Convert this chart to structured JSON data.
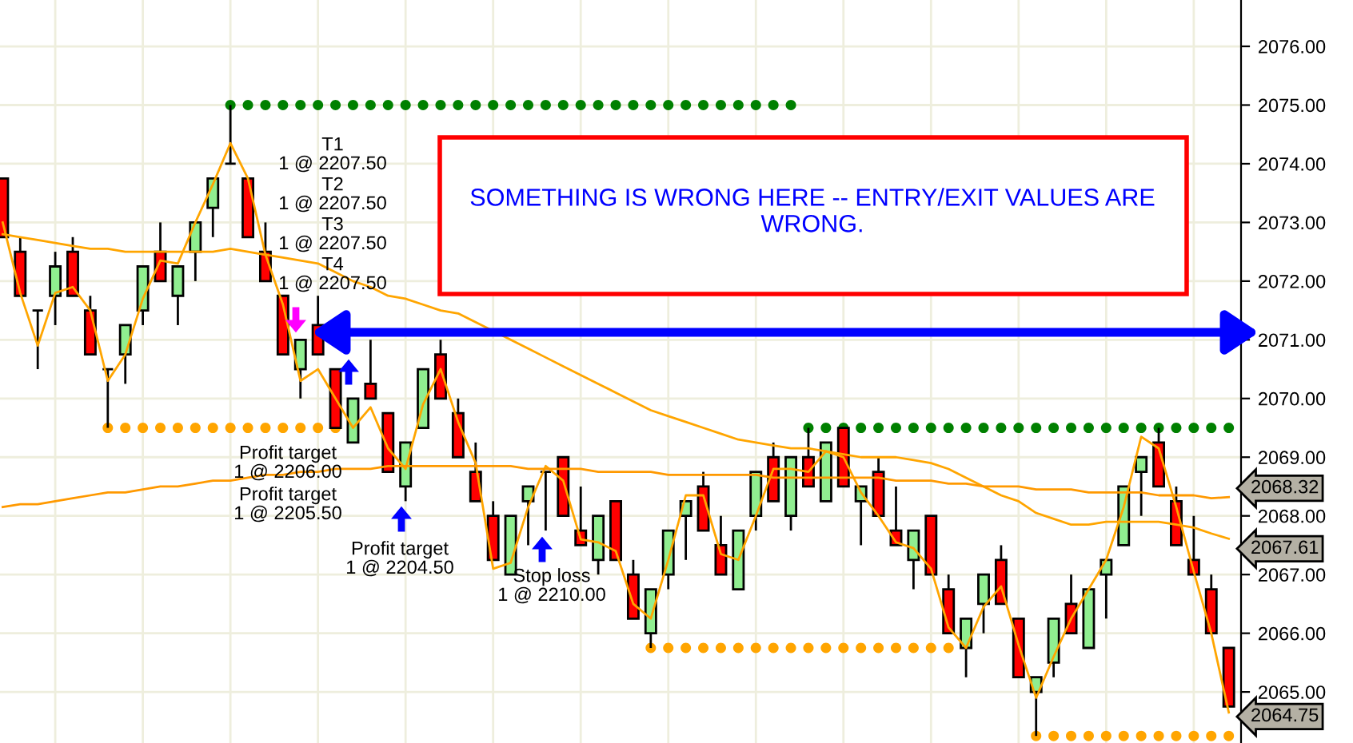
{
  "chart_data": {
    "type": "candlestick",
    "categories": [
      null,
      null,
      null,
      null,
      null,
      null,
      null,
      null,
      null,
      null,
      null,
      null,
      null,
      null,
      null,
      null,
      null,
      null,
      null,
      null,
      null,
      null,
      null,
      null,
      null,
      null,
      null,
      null,
      null,
      null,
      null,
      null,
      null,
      null,
      null,
      null,
      null,
      null,
      null,
      null,
      null,
      null,
      null,
      null,
      null,
      null,
      null,
      null,
      null,
      null,
      null,
      null,
      null,
      null,
      null,
      null,
      null,
      null,
      null,
      null,
      null,
      null,
      null,
      null,
      null,
      null,
      null,
      null,
      null,
      null,
      null
    ],
    "ohlc": [
      [
        2073.75,
        2073.75,
        2072.75,
        2072.75
      ],
      [
        2072.5,
        2072.75,
        2071.75,
        2071.75
      ],
      [
        2071.5,
        2071.5,
        2070.5,
        2071.5
      ],
      [
        2071.75,
        2072.5,
        2071.25,
        2072.25
      ],
      [
        2072.5,
        2072.75,
        2071.75,
        2071.75
      ],
      [
        2071.5,
        2071.75,
        2070.75,
        2070.75
      ],
      [
        2070.5,
        2070.5,
        2069.5,
        2070.5
      ],
      [
        2070.75,
        2071.25,
        2070.25,
        2071.25
      ],
      [
        2071.5,
        2072.25,
        2071.25,
        2072.25
      ],
      [
        2072.5,
        2073.0,
        2072.0,
        2072.0
      ],
      [
        2071.75,
        2072.25,
        2071.25,
        2072.25
      ],
      [
        2072.5,
        2073.0,
        2072.0,
        2073.0
      ],
      [
        2073.25,
        2073.75,
        2072.75,
        2073.75
      ],
      [
        2074.0,
        2075.0,
        2074.0,
        2074.0
      ],
      [
        2073.75,
        2073.75,
        2072.75,
        2072.75
      ],
      [
        2072.5,
        2073.0,
        2072.0,
        2072.0
      ],
      [
        2071.75,
        2071.75,
        2070.75,
        2070.75
      ],
      [
        2070.5,
        2071.0,
        2070.0,
        2071.0
      ],
      [
        2071.25,
        2071.75,
        2070.75,
        2070.75
      ],
      [
        2070.5,
        2070.5,
        2069.5,
        2069.5
      ],
      [
        2069.25,
        2070.0,
        2069.25,
        2070.0
      ],
      [
        2070.25,
        2071.0,
        2070.0,
        2070.0
      ],
      [
        2069.75,
        2069.75,
        2068.75,
        2068.75
      ],
      [
        2068.5,
        2069.25,
        2068.25,
        2069.25
      ],
      [
        2069.5,
        2070.5,
        2069.5,
        2070.5
      ],
      [
        2070.75,
        2071.0,
        2070.0,
        2070.0
      ],
      [
        2069.75,
        2070.0,
        2069.0,
        2069.0
      ],
      [
        2068.75,
        2069.25,
        2068.25,
        2068.25
      ],
      [
        2068.0,
        2068.25,
        2067.25,
        2067.25
      ],
      [
        2067.0,
        2068.0,
        2067.0,
        2068.0
      ],
      [
        2068.25,
        2068.5,
        2067.5,
        2068.5
      ],
      [
        2068.75,
        2068.75,
        2067.75,
        2068.75
      ],
      [
        2069.0,
        2069.0,
        2068.0,
        2068.0
      ],
      [
        2067.75,
        2068.5,
        2067.5,
        2067.5
      ],
      [
        2067.25,
        2068.0,
        2067.0,
        2068.0
      ],
      [
        2068.25,
        2068.25,
        2067.25,
        2067.25
      ],
      [
        2067.0,
        2067.25,
        2066.25,
        2066.25
      ],
      [
        2066.0,
        2066.75,
        2065.75,
        2066.75
      ],
      [
        2067.0,
        2067.75,
        2066.75,
        2067.75
      ],
      [
        2068.0,
        2068.25,
        2067.25,
        2068.25
      ],
      [
        2068.5,
        2068.75,
        2067.75,
        2067.75
      ],
      [
        2067.5,
        2068.0,
        2067.0,
        2067.0
      ],
      [
        2066.75,
        2067.75,
        2066.75,
        2067.75
      ],
      [
        2068.0,
        2068.75,
        2067.75,
        2068.75
      ],
      [
        2069.0,
        2069.25,
        2068.25,
        2068.25
      ],
      [
        2068.0,
        2069.0,
        2067.75,
        2069.0
      ],
      [
        2069.0,
        2069.5,
        2068.5,
        2068.5
      ],
      [
        2068.25,
        2069.25,
        2068.25,
        2069.25
      ],
      [
        2069.5,
        2069.5,
        2068.5,
        2068.5
      ],
      [
        2068.25,
        2068.5,
        2067.5,
        2068.5
      ],
      [
        2068.75,
        2069.0,
        2068.0,
        2068.0
      ],
      [
        2067.75,
        2068.5,
        2067.5,
        2067.5
      ],
      [
        2067.25,
        2067.75,
        2066.75,
        2067.75
      ],
      [
        2068.0,
        2068.0,
        2067.0,
        2067.0
      ],
      [
        2066.75,
        2067.0,
        2066.0,
        2066.0
      ],
      [
        2065.75,
        2066.25,
        2065.25,
        2066.25
      ],
      [
        2066.5,
        2067.0,
        2066.0,
        2067.0
      ],
      [
        2067.25,
        2067.5,
        2066.5,
        2066.5
      ],
      [
        2066.25,
        2066.25,
        2065.25,
        2065.25
      ],
      [
        2065.0,
        2065.25,
        2064.25,
        2065.25
      ],
      [
        2065.5,
        2066.25,
        2065.25,
        2066.25
      ],
      [
        2066.5,
        2067.0,
        2066.0,
        2066.0
      ],
      [
        2065.75,
        2066.75,
        2065.75,
        2066.75
      ],
      [
        2067.0,
        2067.25,
        2066.25,
        2067.25
      ],
      [
        2067.5,
        2068.5,
        2067.5,
        2068.5
      ],
      [
        2068.75,
        2069.0,
        2068.0,
        2069.0
      ],
      [
        2069.25,
        2069.5,
        2068.5,
        2068.5
      ],
      [
        2068.25,
        2068.5,
        2067.5,
        2067.5
      ],
      [
        2067.25,
        2068.0,
        2067.0,
        2067.0
      ],
      [
        2066.75,
        2067.0,
        2066.0,
        2066.0
      ],
      [
        2065.75,
        2065.75,
        2064.75,
        2064.75
      ]
    ],
    "colors": [
      "#ff0000",
      "#ff0000",
      "#000000",
      "#90ee90",
      "#ff0000",
      "#ff0000",
      "#000000",
      "#90ee90",
      "#90ee90",
      "#ff0000",
      "#90ee90",
      "#90ee90",
      "#90ee90",
      "#000000",
      "#ff0000",
      "#ff0000",
      "#ff0000",
      "#90ee90",
      "#ff0000",
      "#ff0000",
      "#90ee90",
      "#ff0000",
      "#ff0000",
      "#90ee90",
      "#90ee90",
      "#ff0000",
      "#ff0000",
      "#ff0000",
      "#ff0000",
      "#90ee90",
      "#90ee90",
      "#000000",
      "#ff0000",
      "#ff0000",
      "#90ee90",
      "#ff0000",
      "#ff0000",
      "#90ee90",
      "#90ee90",
      "#90ee90",
      "#ff0000",
      "#ff0000",
      "#90ee90",
      "#90ee90",
      "#ff0000",
      "#90ee90",
      "#ff0000",
      "#90ee90",
      "#ff0000",
      "#90ee90",
      "#ff0000",
      "#ff0000",
      "#90ee90",
      "#ff0000",
      "#ff0000",
      "#90ee90",
      "#90ee90",
      "#ff0000",
      "#ff0000",
      "#90ee90",
      "#90ee90",
      "#ff0000",
      "#90ee90",
      "#90ee90",
      "#90ee90",
      "#90ee90",
      "#ff0000",
      "#ff0000",
      "#ff0000",
      "#ff0000",
      "#ff0000"
    ],
    "series": [
      {
        "type": "line",
        "color": "#ffa500",
        "values": [
          2073.0,
          2071.8,
          2070.9,
          2071.8,
          2071.9,
          2071.5,
          2070.3,
          2070.75,
          2071.7,
          2072.35,
          2072.3,
          2073.0,
          2073.65,
          2074.35,
          2073.75,
          2072.45,
          2071.6,
          2070.3,
          2070.5,
          2070.0,
          2069.5,
          2069.85,
          2069.15,
          2068.8,
          2069.9,
          2070.5,
          2069.6,
          2068.9,
          2067.1,
          2067.2,
          2068.15,
          2068.85,
          2068.6,
          2067.6,
          2067.55,
          2067.4,
          2066.5,
          2066.25,
          2067.25,
          2068.35,
          2068.35,
          2067.35,
          2067.25,
          2068.0,
          2068.8,
          2068.8,
          2068.75,
          2069.1,
          2069.0,
          2068.4,
          2068.0,
          2067.55,
          2067.45,
          2067.1,
          2066.1,
          2065.75,
          2066.45,
          2066.8,
          2065.8,
          2064.9,
          2065.6,
          2066.25,
          2066.75,
          2067.25,
          2068.15,
          2069.35,
          2069.15,
          2068.15,
          2067.05,
          2066.0,
          2064.65
        ]
      },
      {
        "type": "line",
        "color": "#ffa500",
        "values": [
          2072.8,
          2072.75,
          2072.7,
          2072.65,
          2072.6,
          2072.55,
          2072.55,
          2072.5,
          2072.5,
          2072.5,
          2072.5,
          2072.5,
          2072.5,
          2072.55,
          2072.5,
          2072.45,
          2072.4,
          2072.35,
          2072.3,
          2072.15,
          2072.0,
          2071.9,
          2071.75,
          2071.7,
          2071.6,
          2071.5,
          2071.45,
          2071.3,
          2071.15,
          2071.0,
          2070.85,
          2070.7,
          2070.55,
          2070.4,
          2070.25,
          2070.1,
          2069.95,
          2069.8,
          2069.7,
          2069.6,
          2069.5,
          2069.4,
          2069.3,
          2069.25,
          2069.2,
          2069.15,
          2069.15,
          2069.1,
          2069.05,
          2069.0,
          2069.0,
          2069.0,
          2068.95,
          2068.9,
          2068.8,
          2068.65,
          2068.5,
          2068.35,
          2068.25,
          2068.05,
          2067.95,
          2067.85,
          2067.85,
          2067.9,
          2067.9,
          2067.9,
          2067.9,
          2067.85,
          2067.8,
          2067.7,
          2067.61
        ],
        "value_labels": [
          null,
          null,
          null,
          null,
          null,
          null,
          null,
          null,
          null,
          null,
          null,
          null,
          null,
          null,
          null,
          null,
          null,
          null,
          null,
          null,
          null,
          null,
          null,
          null,
          null,
          null,
          null,
          null,
          null,
          null,
          null,
          null,
          null,
          null,
          null,
          null,
          null,
          null,
          null,
          null,
          null,
          null,
          null,
          null,
          null,
          null,
          null,
          null,
          null,
          null,
          null,
          null,
          null,
          null,
          null,
          null,
          null,
          null,
          null,
          null,
          null,
          null,
          null,
          null,
          null,
          null,
          null,
          null,
          null,
          null,
          "2067.61"
        ]
      },
      {
        "type": "line",
        "color": "#ff9900",
        "values": [
          2068.15,
          2068.2,
          2068.2,
          2068.25,
          2068.3,
          2068.35,
          2068.4,
          2068.4,
          2068.45,
          2068.5,
          2068.5,
          2068.55,
          2068.6,
          2068.6,
          2068.65,
          2068.7,
          2068.7,
          2068.75,
          2068.75,
          2068.8,
          2068.8,
          2068.8,
          2068.85,
          2068.85,
          2068.85,
          2068.85,
          2068.85,
          2068.85,
          2068.85,
          2068.85,
          2068.8,
          2068.8,
          2068.8,
          2068.8,
          2068.75,
          2068.75,
          2068.75,
          2068.75,
          2068.7,
          2068.7,
          2068.7,
          2068.7,
          2068.7,
          2068.7,
          2068.65,
          2068.65,
          2068.65,
          2068.65,
          2068.65,
          2068.65,
          2068.65,
          2068.6,
          2068.6,
          2068.6,
          2068.55,
          2068.55,
          2068.5,
          2068.5,
          2068.5,
          2068.45,
          2068.45,
          2068.45,
          2068.4,
          2068.4,
          2068.4,
          2068.4,
          2068.35,
          2068.35,
          2068.35,
          2068.3,
          2068.32
        ],
        "value_labels": [
          null,
          null,
          null,
          null,
          null,
          null,
          null,
          null,
          null,
          null,
          null,
          null,
          null,
          null,
          null,
          null,
          null,
          null,
          null,
          null,
          null,
          null,
          null,
          null,
          null,
          null,
          null,
          null,
          null,
          null,
          null,
          null,
          null,
          null,
          null,
          null,
          null,
          null,
          null,
          null,
          null,
          null,
          null,
          null,
          null,
          null,
          null,
          null,
          null,
          null,
          null,
          null,
          null,
          null,
          null,
          null,
          null,
          null,
          null,
          null,
          null,
          null,
          null,
          null,
          null,
          null,
          null,
          null,
          null,
          null,
          "2068.32"
        ]
      },
      {
        "type": "scatter",
        "color": "#008000",
        "marker": "circle",
        "values": [
          null,
          null,
          null,
          null,
          null,
          null,
          null,
          null,
          null,
          null,
          null,
          null,
          null,
          2075,
          2075,
          2075,
          2075,
          2075,
          2075,
          2075,
          2075,
          2075,
          2075,
          2075,
          2075,
          2075,
          2075,
          2075,
          2075,
          2075,
          2075,
          2075,
          2075,
          2075,
          2075,
          2075,
          2075,
          2075,
          2075,
          2075,
          2075,
          2075,
          2075,
          2075,
          2075,
          2075,
          2069.5,
          2069.5,
          2069.5,
          2069.5,
          2069.5,
          2069.5,
          2069.5,
          2069.5,
          2069.5,
          2069.5,
          2069.5,
          2069.5,
          2069.5,
          2069.5,
          2069.5,
          2069.5,
          2069.5,
          2069.5,
          2069.5,
          2069.5,
          2069.5,
          2069.5,
          2069.5,
          2069.5,
          2069.5
        ]
      },
      {
        "type": "scatter",
        "color": "#ffa500",
        "marker": "circle",
        "values": [
          null,
          null,
          null,
          null,
          null,
          null,
          2069.5,
          2069.5,
          2069.5,
          2069.5,
          2069.5,
          2069.5,
          2069.5,
          2069.5,
          2069.5,
          2069.5,
          2069.5,
          2069.5,
          2069.5,
          2069.5,
          null,
          null,
          null,
          null,
          null,
          null,
          null,
          null,
          null,
          null,
          null,
          null,
          null,
          null,
          null,
          null,
          null,
          2065.75,
          2065.75,
          2065.75,
          2065.75,
          2065.75,
          2065.75,
          2065.75,
          2065.75,
          2065.75,
          2065.75,
          2065.75,
          2065.75,
          2065.75,
          2065.75,
          2065.75,
          2065.75,
          2065.75,
          2065.75,
          null,
          null,
          null,
          null,
          2064.25,
          2064.25,
          2064.25,
          2064.25,
          2064.25,
          2064.25,
          2064.25,
          2064.25,
          2064.25,
          2064.25,
          2064.25,
          2064.25
        ]
      }
    ],
    "ylim": [
      2064.13,
      2076.79
    ],
    "yticks": [
      {
        "value": 2065,
        "label": "2065.00"
      },
      {
        "value": 2066,
        "label": "2066.00"
      },
      {
        "value": 2067,
        "label": "2067.00"
      },
      {
        "value": 2068,
        "label": "2068.00"
      },
      {
        "value": 2069,
        "label": "2069.00"
      },
      {
        "value": 2070,
        "label": "2070.00"
      },
      {
        "value": 2071,
        "label": "2071.00"
      },
      {
        "value": 2072,
        "label": "2072.00"
      },
      {
        "value": 2073,
        "label": "2073.00"
      },
      {
        "value": 2074,
        "label": "2074.00"
      },
      {
        "value": 2075,
        "label": "2075.00"
      },
      {
        "value": 2076,
        "label": "2076.00"
      }
    ],
    "tick_labels": "y",
    "grid": true,
    "annotations": [
      "T1\n1 @ 2207.50",
      "T2\n1 @ 2207.50",
      "T3\n1 @ 2207.50",
      "T4\n1 @ 2207.50",
      "Profit target\n1 @ 2206.00",
      "Profit target\n1 @ 2205.50",
      "Profit target\n1 @ 2204.50",
      "Stop loss\n1 @ 2210.00",
      "SOMETHING IS WRONG HERE -- ENTRY/EXIT VALUES ARE\nWRONG."
    ],
    "value_labels": [
      null,
      null,
      null,
      null,
      null,
      null,
      null,
      null,
      null,
      null,
      null,
      null,
      null,
      null,
      null,
      null,
      null,
      null,
      null,
      null,
      null,
      null,
      null,
      null,
      null,
      null,
      null,
      null,
      null,
      null,
      null,
      null,
      null,
      null,
      null,
      null,
      null,
      null,
      null,
      null,
      null,
      null,
      null,
      null,
      null,
      null,
      null,
      null,
      null,
      null,
      null,
      null,
      null,
      null,
      null,
      null,
      null,
      null,
      null,
      null,
      null,
      null,
      null,
      null,
      null,
      null,
      null,
      null,
      null,
      null,
      "2064.75"
    ]
  }
}
